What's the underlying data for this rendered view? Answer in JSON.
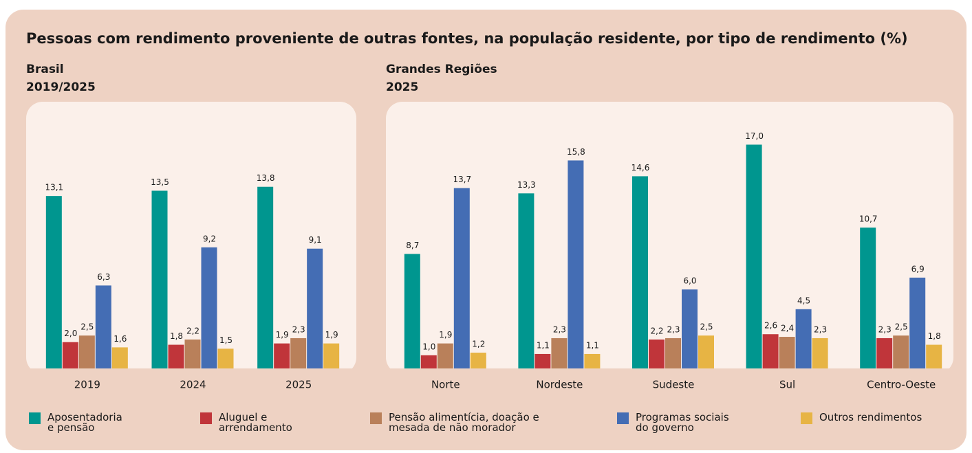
{
  "title": "Pessoas com rendimento proveniente de outras fontes, na população residente, por tipo de rendimento (%)",
  "legend": [
    {
      "name": "Aposentadoria e pensão",
      "color": "#00968f"
    },
    {
      "name": "Aluguel e arrendamento",
      "color": "#c0353a"
    },
    {
      "name": "Pensão alimentícia, doação e mesada de não morador",
      "color": "#b9805a"
    },
    {
      "name": "Programas sociais do governo",
      "color": "#446db4"
    },
    {
      "name": "Outros rendimentos",
      "color": "#e7b444"
    }
  ],
  "chart_data": [
    {
      "type": "bar",
      "subtitle": [
        "Brasil",
        "2019/2025"
      ],
      "ylim": [
        0,
        20
      ],
      "categories": [
        "2019",
        "2024",
        "2025"
      ],
      "series": [
        {
          "values": [
            13.1,
            13.5,
            13.8
          ],
          "value_labels": [
            "13,1",
            "13,5",
            "13,8"
          ]
        },
        {
          "values": [
            2.0,
            1.8,
            1.9
          ],
          "value_labels": [
            "2,0",
            "1,8",
            "1,9"
          ]
        },
        {
          "values": [
            2.5,
            2.2,
            2.3
          ],
          "value_labels": [
            "2,5",
            "2,2",
            "2,3"
          ]
        },
        {
          "values": [
            6.3,
            9.2,
            9.1
          ],
          "value_labels": [
            "6,3",
            "9,2",
            "9,1"
          ]
        },
        {
          "values": [
            1.6,
            1.5,
            1.9
          ],
          "value_labels": [
            "1,6",
            "1,5",
            "1,9"
          ]
        }
      ]
    },
    {
      "type": "bar",
      "subtitle": [
        "Grandes Regiões",
        "2025"
      ],
      "ylim": [
        0,
        20
      ],
      "categories": [
        "Norte",
        "Nordeste",
        "Sudeste",
        "Sul",
        "Centro-Oeste"
      ],
      "series": [
        {
          "values": [
            8.7,
            13.3,
            14.6,
            17.0,
            10.7
          ],
          "value_labels": [
            "8,7",
            "13,3",
            "14,6",
            "17,0",
            "10,7"
          ]
        },
        {
          "values": [
            1.0,
            1.1,
            2.2,
            2.6,
            2.3
          ],
          "value_labels": [
            "1,0",
            "1,1",
            "2,2",
            "2,6",
            "2,3"
          ]
        },
        {
          "values": [
            1.9,
            2.3,
            2.3,
            2.4,
            2.5
          ],
          "value_labels": [
            "1,9",
            "2,3",
            "2,3",
            "2,4",
            "2,5"
          ]
        },
        {
          "values": [
            13.7,
            15.8,
            6.0,
            4.5,
            6.9
          ],
          "value_labels": [
            "13,7",
            "15,8",
            "6,0",
            "4,5",
            "6,9"
          ]
        },
        {
          "values": [
            1.2,
            1.1,
            2.5,
            2.3,
            1.8
          ],
          "value_labels": [
            "1,2",
            "1,1",
            "2,5",
            "2,3",
            "1,8"
          ]
        }
      ]
    }
  ]
}
